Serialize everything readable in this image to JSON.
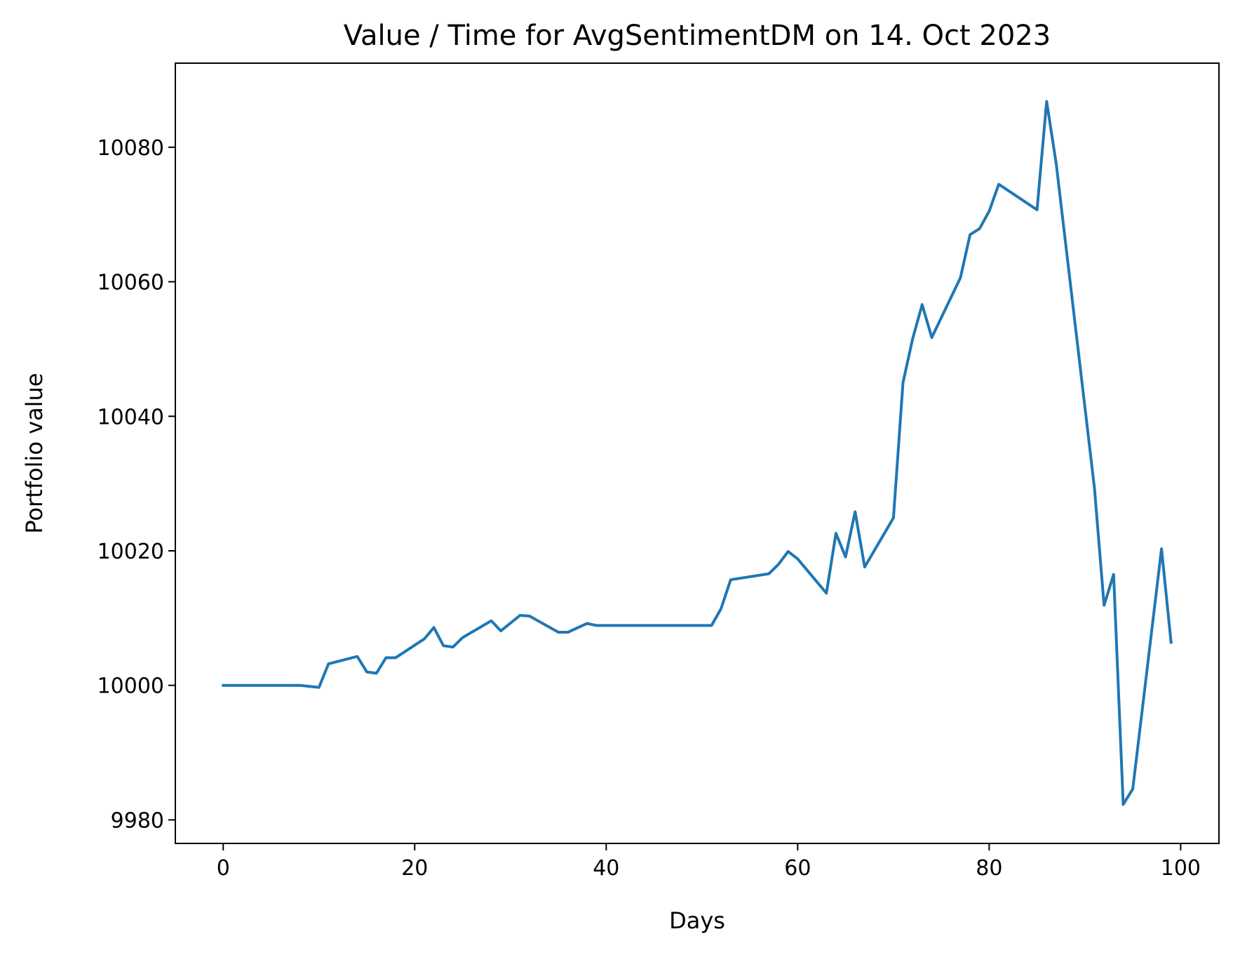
{
  "chart_data": {
    "type": "line",
    "title": "Value / Time for AvgSentimentDM on 14. Oct 2023",
    "xlabel": "Days",
    "ylabel": "Portfolio value",
    "xlim": [
      -5,
      104
    ],
    "ylim": [
      9976.5,
      10092.5
    ],
    "xticks": [
      0,
      20,
      40,
      60,
      80,
      100
    ],
    "yticks": [
      9980,
      10000,
      10020,
      10040,
      10060,
      10080
    ],
    "grid": false,
    "series": [
      {
        "name": "Portfolio value",
        "color": "#1f77b4",
        "x": [
          0,
          8,
          10,
          11,
          14,
          15,
          16,
          17,
          18,
          21,
          22,
          23,
          24,
          25,
          28,
          29,
          31,
          32,
          35,
          36,
          38,
          39,
          51,
          52,
          53,
          57,
          58,
          59,
          60,
          63,
          64,
          65,
          66,
          67,
          70,
          71,
          72,
          73,
          74,
          77,
          78,
          79,
          80,
          81,
          85,
          86,
          87,
          91,
          92,
          93,
          94,
          95,
          98,
          99
        ],
        "y": [
          10000,
          10000,
          9999.7,
          10003.2,
          10004.3,
          10002,
          10001.8,
          10004.1,
          10004.1,
          10006.9,
          10008.6,
          10005.9,
          10005.7,
          10007.1,
          10009.6,
          10008.1,
          10010.4,
          10010.3,
          10007.9,
          10007.9,
          10009.2,
          10008.9,
          10008.9,
          10011.4,
          10015.7,
          10016.6,
          10018,
          10019.9,
          10018.8,
          10013.7,
          10022.6,
          10019.1,
          10025.8,
          10017.6,
          10024.9,
          10045,
          10051.5,
          10056.6,
          10051.7,
          10060.6,
          10067,
          10067.9,
          10070.5,
          10074.5,
          10070.7,
          10086.8,
          10077.6,
          10029.3,
          10011.9,
          10016.5,
          9982.3,
          9984.6,
          10020.3,
          10006.4
        ]
      }
    ]
  }
}
